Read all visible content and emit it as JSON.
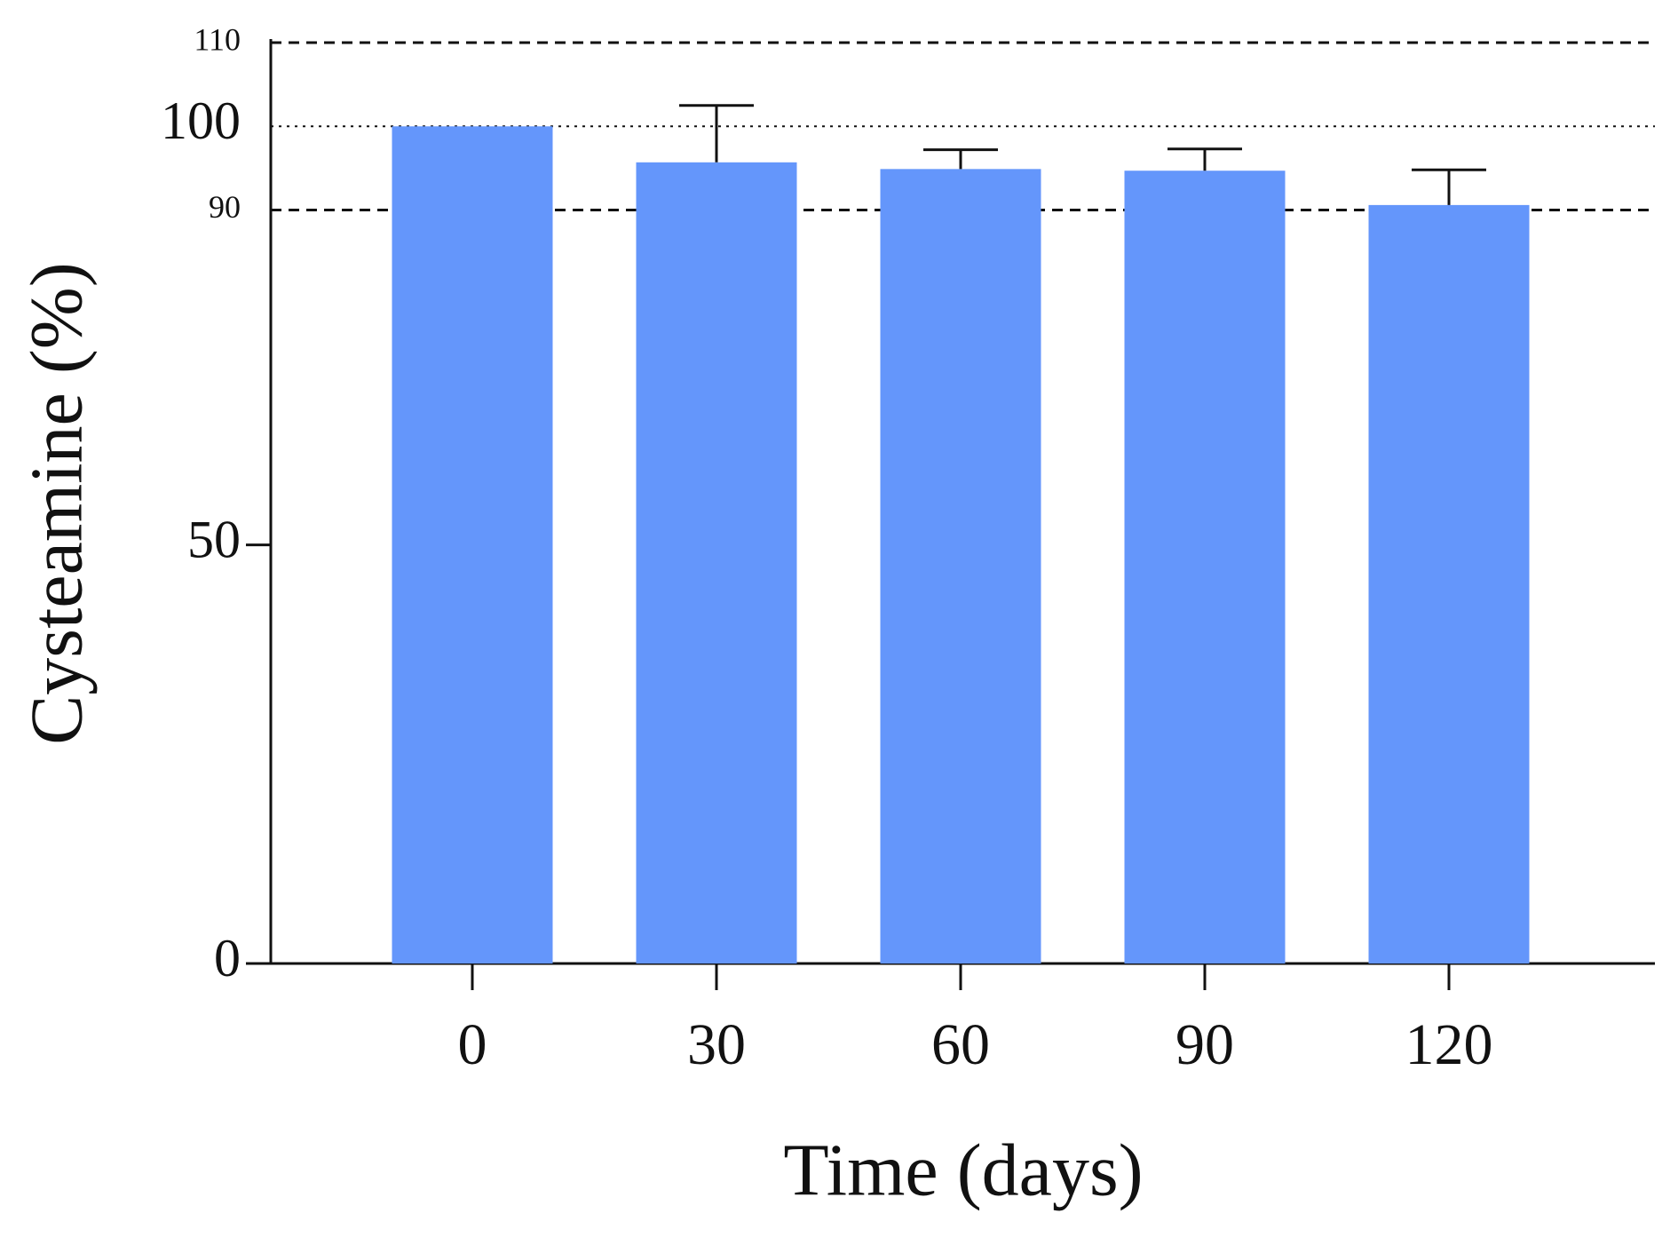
{
  "chart_data": {
    "type": "bar",
    "x_label": "Time (days)",
    "y_label": "Cysteamine (%)",
    "categories": [
      "0",
      "30",
      "60",
      "90",
      "120"
    ],
    "values": [
      100,
      95.7,
      94.9,
      94.7,
      90.6
    ],
    "errors": [
      null,
      6.8,
      2.3,
      2.6,
      4.2
    ],
    "color": "#6496fb",
    "ylim": [
      0,
      110
    ],
    "yticks": [
      0,
      50,
      90,
      100,
      110
    ],
    "grid_styles": [
      "none",
      "none",
      "dashed",
      "dotted",
      "dashed"
    ]
  }
}
